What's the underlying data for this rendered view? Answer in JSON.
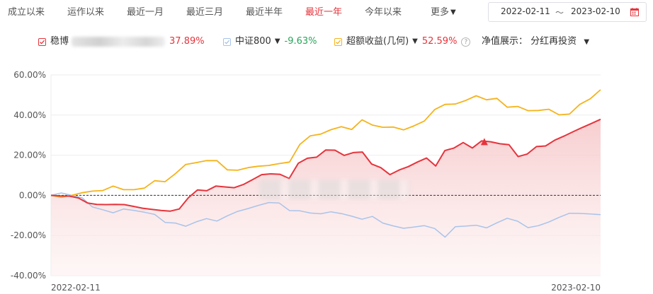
{
  "tabs": [
    {
      "label": "成立以来",
      "active": false
    },
    {
      "label": "运作以来",
      "active": false
    },
    {
      "label": "最近一月",
      "active": false
    },
    {
      "label": "最近三月",
      "active": false
    },
    {
      "label": "最近半年",
      "active": false
    },
    {
      "label": "最近一年",
      "active": true
    },
    {
      "label": "今年以来",
      "active": false
    }
  ],
  "more_label": "更多",
  "date_range": {
    "start": "2022-02-11",
    "separator": "～",
    "end": "2023-02-10"
  },
  "legend": {
    "fund": {
      "name_visible": "稳博",
      "value": "37.89%",
      "color": "#e6343c",
      "value_color": "#e6343c"
    },
    "index": {
      "name": "中证800",
      "value": "-9.63%",
      "color": "#a8c3ea",
      "value_color": "#2aa55a"
    },
    "excess": {
      "name": "超额收益(几何)",
      "value": "52.59%",
      "color": "#f5b31c",
      "value_color": "#e6343c"
    }
  },
  "nav_setting": {
    "label": "净值展示：",
    "value": "分红再投资"
  },
  "colors": {
    "accent": "#e6343c",
    "fund": "#e6343c",
    "index": "#a8c3ea",
    "excess": "#f5b31c",
    "grid": "#eeeeee",
    "zero_line": "#333333"
  },
  "chart_data": {
    "type": "line",
    "ylim": [
      -40,
      60
    ],
    "yticks": [
      "60.00%",
      "40.00%",
      "20.00%",
      "0.00%",
      "-20.00%",
      "-40.00%"
    ],
    "ytick_values": [
      60,
      40,
      20,
      0,
      -20,
      -40
    ],
    "xticks": [
      "2022-02-11",
      "2023-02-10"
    ],
    "x": [
      0,
      1,
      2,
      3,
      4,
      5,
      6,
      7,
      8,
      9,
      10,
      11,
      12,
      13,
      14,
      15,
      16,
      17,
      18,
      19,
      20,
      21,
      22,
      23,
      24,
      25,
      26,
      27,
      28,
      29,
      30,
      31,
      32,
      33,
      34,
      35,
      36,
      37,
      38,
      39,
      40,
      41,
      42,
      43,
      44,
      45,
      46,
      47,
      48,
      49,
      50,
      51,
      52,
      53,
      54,
      55,
      56,
      57,
      58,
      59,
      60,
      61,
      62,
      63,
      64,
      65,
      66,
      67,
      68,
      69,
      70,
      71,
      72,
      73,
      74
    ],
    "series": [
      {
        "name": "稳博",
        "values": [
          0,
          -0.3,
          -0.4,
          -1.3,
          -3.8,
          -4.5,
          -4.6,
          -4.5,
          -4.6,
          -5.5,
          -6.4,
          -7.0,
          -7.5,
          -7.9,
          -6.8,
          -1.2,
          2.7,
          2.3,
          4.6,
          4.2,
          3.8,
          5.4,
          7.8,
          10.3,
          10.7,
          10.5,
          8.4,
          16.0,
          18.5,
          19.0,
          22.6,
          22.5,
          19.9,
          21.3,
          21.6,
          15.6,
          13.8,
          10.3,
          12.6,
          14.3,
          16.6,
          18.6,
          14.6,
          22.3,
          23.6,
          26.3,
          23.6,
          27.1,
          26.7,
          25.7,
          25.2,
          19.3,
          20.6,
          24.3,
          24.6,
          27.5,
          29.5,
          31.7,
          33.8,
          35.8,
          37.89,
          null,
          null,
          null,
          null,
          null,
          null,
          null,
          null,
          null,
          null,
          null,
          null,
          null,
          null
        ]
      },
      {
        "name": "中证800",
        "values": [
          0,
          1.2,
          0,
          -1.2,
          -5.8,
          -7.2,
          -8.7,
          -6.8,
          -7.5,
          -8.4,
          -9.5,
          -13.5,
          -13.8,
          -15.4,
          -13.2,
          -11.6,
          -12.8,
          -10.2,
          -8.0,
          -6.6,
          -5.0,
          -3.6,
          -3.8,
          -7.6,
          -7.7,
          -8.8,
          -9.2,
          -8.2,
          -9.1,
          -10.4,
          -11.9,
          -10.5,
          -13.8,
          -15.2,
          -16.4,
          -15.8,
          -15.1,
          -16.5,
          -20.8,
          -15.6,
          -15.3,
          -14.9,
          -16.2,
          -13.7,
          -11.4,
          -12.9,
          -16.1,
          -15.1,
          -13.3,
          -11.0,
          -8.9,
          -9.0,
          -9.3,
          -9.63,
          null,
          null,
          null,
          null,
          null,
          null,
          null,
          null,
          null,
          null,
          null,
          null,
          null,
          null,
          null,
          null,
          null,
          null,
          null,
          null,
          null
        ]
      },
      {
        "name": "超额收益(几何)",
        "values": [
          0,
          -1.0,
          0,
          1.3,
          2.1,
          2.4,
          4.6,
          2.8,
          2.8,
          3.6,
          7.3,
          6.8,
          10.8,
          15.4,
          16.3,
          17.3,
          17.3,
          12.7,
          12.5,
          13.8,
          14.5,
          14.9,
          15.8,
          16.6,
          25.4,
          29.6,
          30.5,
          32.7,
          34.2,
          32.8,
          37.6,
          35.0,
          33.9,
          34.0,
          32.6,
          34.6,
          37.0,
          42.7,
          45.3,
          45.5,
          47.3,
          49.6,
          47.6,
          48.3,
          43.9,
          44.3,
          42.2,
          42.3,
          42.9,
          40.1,
          40.5,
          45.3,
          48.1,
          52.59,
          null,
          null,
          null,
          null,
          null,
          null,
          null,
          null,
          null,
          null,
          null,
          null,
          null,
          null,
          null,
          null,
          null,
          null,
          null,
          null,
          null
        ]
      }
    ]
  }
}
